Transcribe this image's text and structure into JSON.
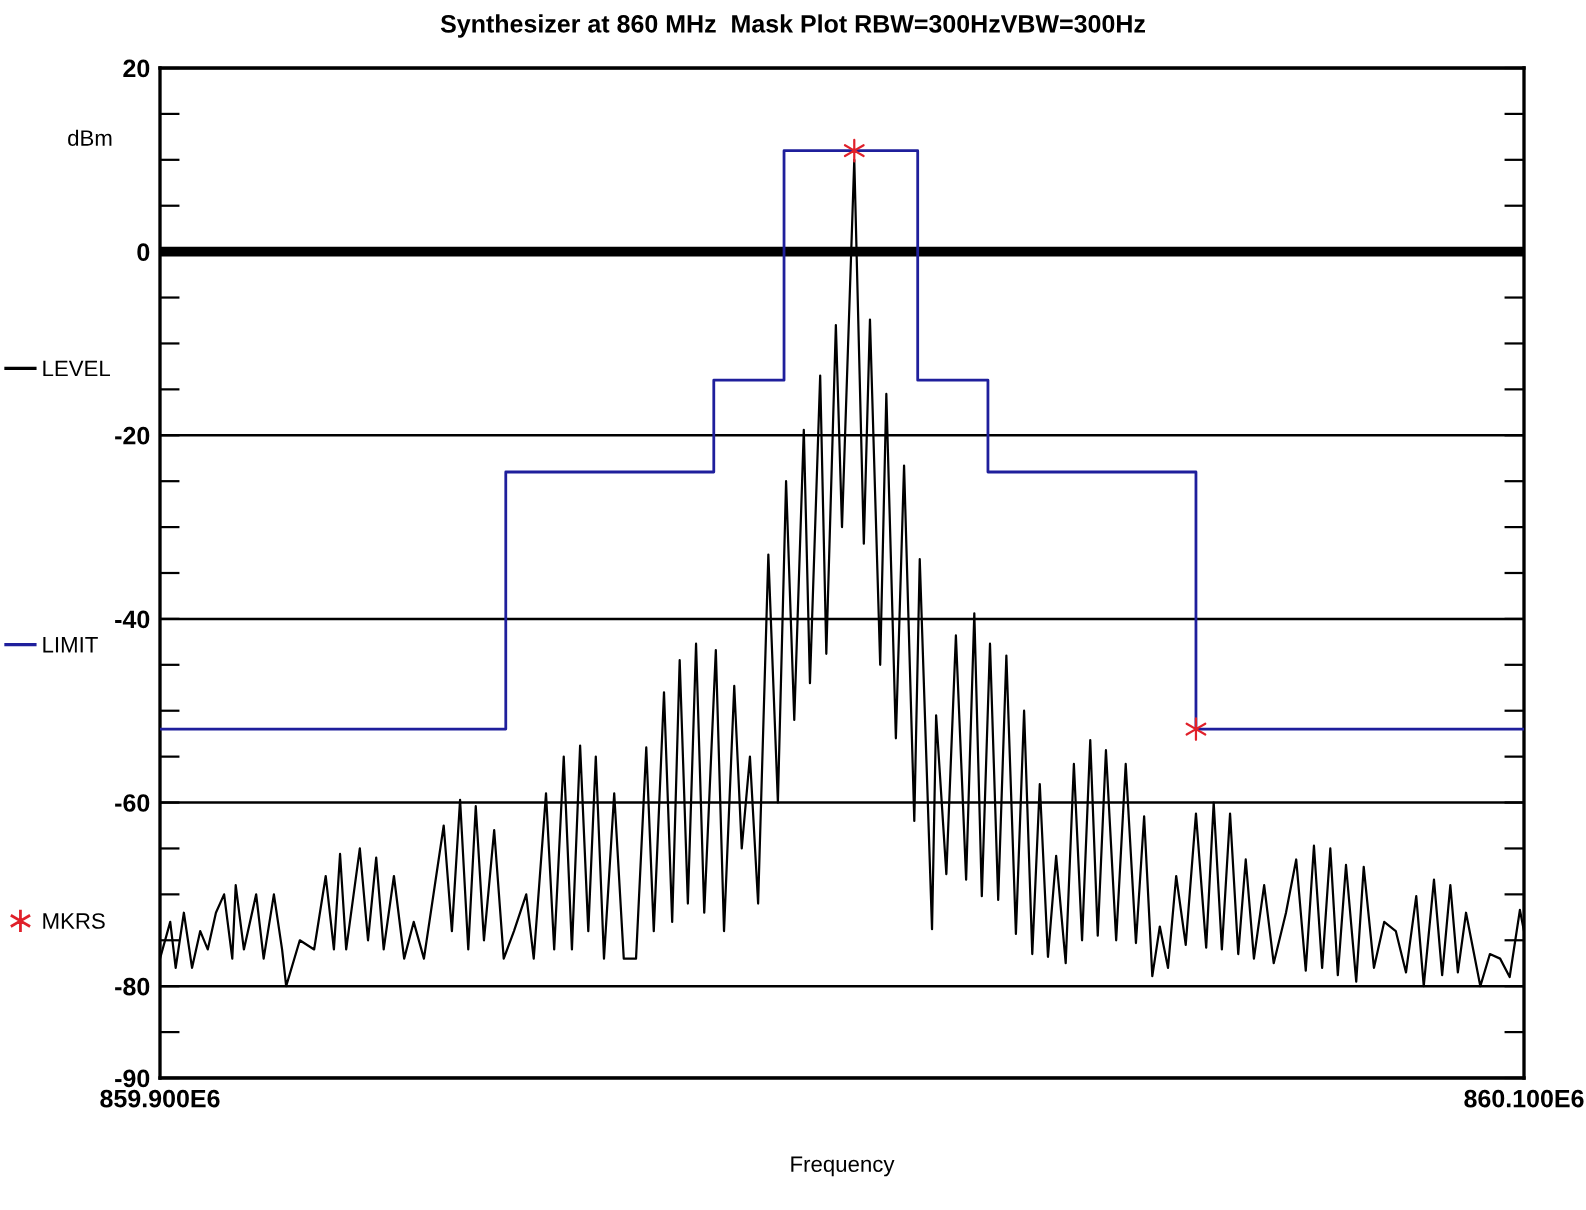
{
  "chart_data": {
    "type": "line",
    "title": "Synthesizer at 860 MHz  Mask Plot RBW=300HzVBW=300Hz",
    "xlabel": "Frequency",
    "ylabel": "dBm",
    "xlim": [
      859900000.0,
      860100000.0
    ],
    "xticks": [
      {
        "value": 859900000.0,
        "label": "859.900E6"
      },
      {
        "value": 860100000.0,
        "label": "860.100E6"
      }
    ],
    "ylim": [
      -90,
      20
    ],
    "yticks": [
      20,
      {
        "value": 15,
        "label": null
      },
      {
        "value": 10,
        "label": null
      },
      {
        "value": 5,
        "label": null
      },
      0,
      {
        "value": -5,
        "label": null
      },
      {
        "value": -10,
        "label": null
      },
      {
        "value": -15,
        "label": null
      },
      -20,
      {
        "value": -25,
        "label": null
      },
      {
        "value": -30,
        "label": null
      },
      {
        "value": -35,
        "label": null
      },
      -40,
      {
        "value": -45,
        "label": null
      },
      {
        "value": -50,
        "label": null
      },
      {
        "value": -55,
        "label": null
      },
      -60,
      {
        "value": -65,
        "label": null
      },
      {
        "value": -70,
        "label": null
      },
      {
        "value": -75,
        "label": null
      },
      -80,
      {
        "value": -85,
        "label": null
      },
      -90
    ],
    "grid": "y",
    "legend": "left",
    "ref_lines": [
      {
        "axis": "y",
        "value": 0,
        "label": "LEVEL",
        "color": "#000000"
      }
    ],
    "series": [
      {
        "color": "#000000",
        "x": [
          859900000.0,
          859901500.0,
          859902300.0,
          859903500.0,
          859904700.0,
          859905900.0,
          859907000.0,
          859908200.0,
          859909400.0,
          859910600.0,
          859911100.0,
          859912300.0,
          859914100.0,
          859915200.0,
          859916700.0,
          859917900.0,
          859918500.0,
          859920500.0,
          859922600.0,
          859924300.0,
          859925500.0,
          859926400.0,
          859927300.0,
          859929300.0,
          859930500.0,
          859931700.0,
          859932800.0,
          859934300.0,
          859935800.0,
          859937200.0,
          859938700.0,
          859941600.0,
          859942800.0,
          859944000.0,
          859945200.0,
          859946300.0,
          859947500.0,
          859949000.0,
          859950400.0,
          859951900.0,
          859953700.0,
          859954800.0,
          859956600.0,
          859957800.0,
          859959200.0,
          859960400.0,
          859961600.0,
          859962800.0,
          859963900.0,
          859965100.0,
          859966600.0,
          859968000.0,
          859969800.0,
          859971300.0,
          859972400.0,
          859973900.0,
          859975100.0,
          859976200.0,
          859977400.0,
          859978600.0,
          859979800.0,
          859981500.0,
          859982700.0,
          859984200.0,
          859985300.0,
          859986500.0,
          859987700.0,
          859989200.0,
          859990600.0,
          859991800.0,
          859993000.0,
          859994400.0,
          859995300.0,
          859996800.0,
          859997700.0,
          859999100.0,
          860000000.0,
          860001800.0,
          860003200.0,
          860004100.0,
          860005600.0,
          860006500.0,
          860007900.0,
          860009100.0,
          860010600.0,
          860011400.0,
          860013200.0,
          860013800.0,
          860015300.0,
          860016700.0,
          860018200.0,
          860019400.0,
          860020500.0,
          860021700.0,
          860022900.0,
          860024100.0,
          860025500.0,
          860026700.0,
          860027900.0,
          860029000.0,
          860030200.0,
          860031400.0,
          860032800.0,
          860034000.0,
          860035200.0,
          860036400.0,
          860037500.0,
          860038700.0,
          860040200.0,
          860041600.0,
          860043100.0,
          860044300.0,
          860045500.0,
          860046600.0,
          860047800.0,
          860049000.0,
          860050400.0,
          860051900.0,
          860053400.0,
          860054500.0,
          860055700.0,
          860056900.0,
          860058100.0,
          860059200.0,
          860060400.0,
          860061900.0,
          860063300.0,
          860065100.0,
          860066600.0,
          860068000.0,
          860069200.0,
          860070400.0,
          860071600.0,
          860072700.0,
          860073900.0,
          860075400.0,
          860076500.0,
          860078000.0,
          860079500.0,
          860081200.0,
          860082700.0,
          860084200.0,
          860085300.0,
          860086800.0,
          860088000.0,
          860089200.0,
          860090300.0,
          860091500.0,
          860093600.0,
          860095000.0,
          860096500.0,
          860097900.0,
          860099400.0,
          860100000.0
        ],
        "values": [
          -77,
          -73,
          -78,
          -72,
          -78,
          -74,
          -76,
          -72,
          -70,
          -77,
          -69,
          -76,
          -70,
          -77,
          -70,
          -76,
          -80,
          -75,
          -76,
          -68,
          -76,
          -65.6,
          -76,
          -65,
          -75,
          -66,
          -76,
          -68,
          -77,
          -73,
          -77,
          -62.5,
          -74,
          -59.7,
          -76,
          -60.4,
          -75,
          -63,
          -77,
          -74,
          -70,
          -77,
          -59,
          -76,
          -55,
          -76,
          -53.8,
          -74,
          -55,
          -77,
          -59,
          -77,
          -77,
          -54,
          -74,
          -48,
          -73,
          -44.5,
          -71,
          -42.7,
          -72,
          -43.4,
          -74,
          -47.3,
          -65,
          -55,
          -71,
          -33,
          -60,
          -25,
          -51,
          -19.4,
          -47,
          -13.5,
          -43.8,
          -8,
          -30,
          10,
          -31.8,
          -7.4,
          -45,
          -15.5,
          -53,
          -23.3,
          -62,
          -33.5,
          -73.8,
          -50.5,
          -67.8,
          -41.8,
          -68.4,
          -39.4,
          -70.2,
          -42.7,
          -70.6,
          -44,
          -74.3,
          -50,
          -76.5,
          -58,
          -76.8,
          -65.8,
          -77.5,
          -55.8,
          -75,
          -53.2,
          -74.5,
          -54.3,
          -75,
          -55.8,
          -75.3,
          -61.5,
          -78.9,
          -73.5,
          -78,
          -68,
          -75.5,
          -61.2,
          -75.8,
          -60,
          -76,
          -61.2,
          -76.5,
          -66.2,
          -77,
          -69,
          -77.5,
          -72,
          -66.2,
          -78.3,
          -64.7,
          -78,
          -65,
          -78.8,
          -66.8,
          -79.5,
          -67,
          -78,
          -73,
          -74,
          -78.5,
          -70.2,
          -80,
          -68.4,
          -78.8,
          -69,
          -78.5,
          -72,
          -80,
          -76.5,
          -77,
          -79,
          -71.7,
          -74
        ]
      },
      {
        "type": "step",
        "name": "LIMIT",
        "color": "#1f1f9c",
        "x": [
          859900000.0,
          859950700.0,
          859981200.0,
          859991500.0,
          860011100.0,
          860021400.0,
          860051900.0,
          860100000.0
        ],
        "values": [
          -52,
          -24,
          -14,
          11,
          -14,
          -24,
          -52,
          -52
        ]
      },
      {
        "type": "scatter",
        "name": "MKRS",
        "color": "#e0202a",
        "marker": "cross",
        "x": [
          860001800.0,
          860051900.0
        ],
        "values": [
          11,
          -52
        ]
      }
    ]
  }
}
